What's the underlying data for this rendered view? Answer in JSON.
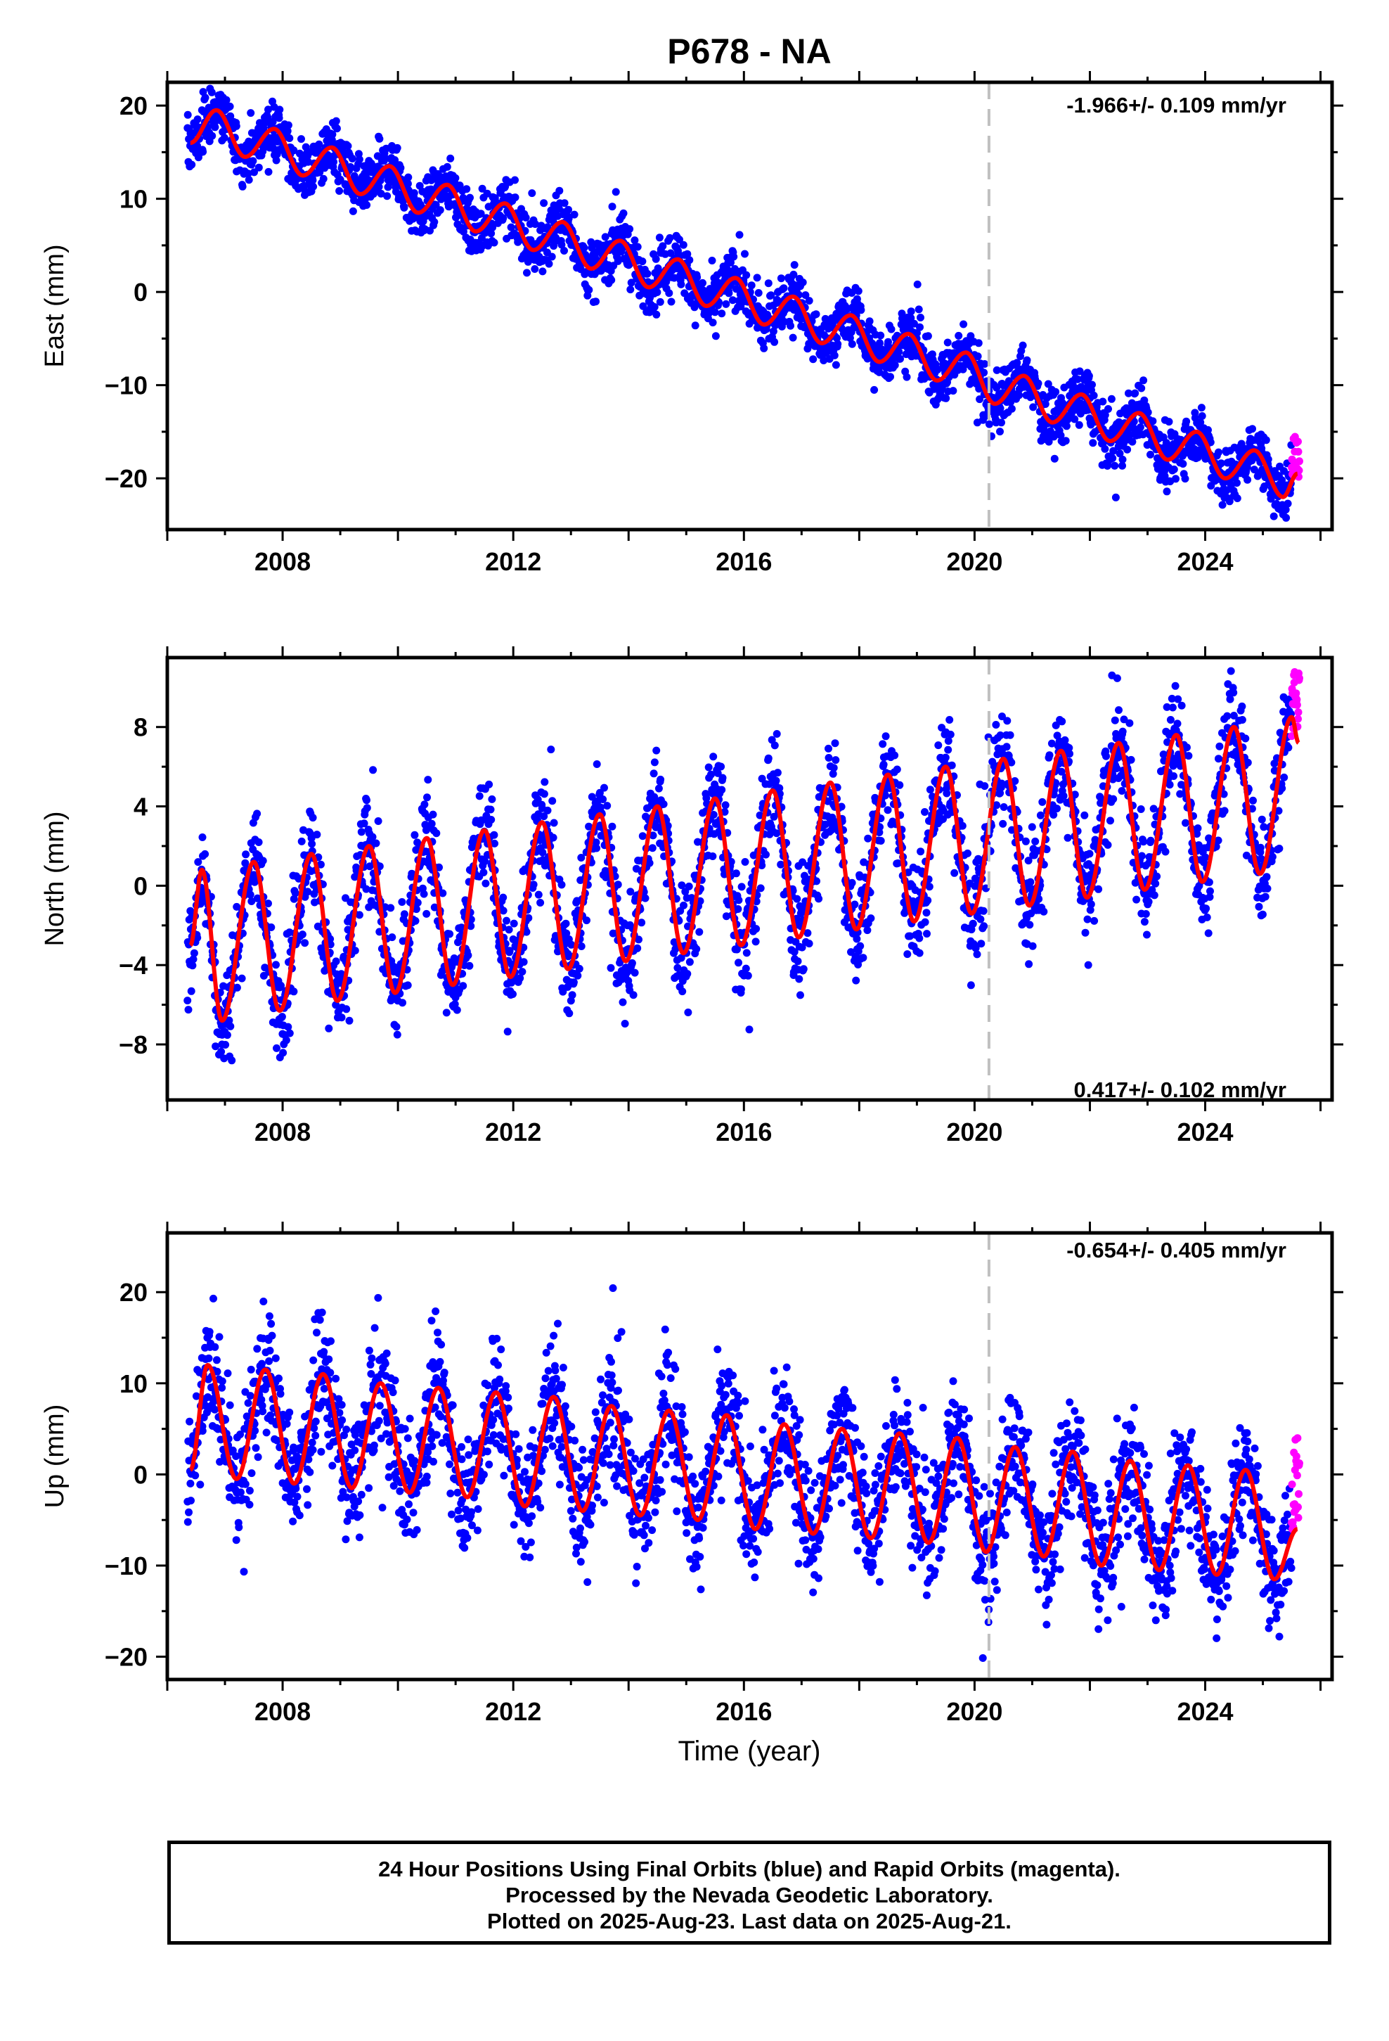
{
  "title": "P678 - NA",
  "xlabel": "Time (year)",
  "colors": {
    "final_orbits": "#0000ff",
    "rapid_orbits": "#ff00ff",
    "model_fit": "#ff0000",
    "marker_line": "#c0c0c0"
  },
  "footer": {
    "line1": "24 Hour Positions Using Final Orbits (blue) and Rapid Orbits (magenta).",
    "line2": "Processed by the Nevada Geodetic Laboratory.",
    "line3": "Plotted on 2025-Aug-23. Last data on 2025-Aug-21."
  },
  "chart_data": [
    {
      "type": "scatter",
      "component": "East",
      "ylabel": "East (mm)",
      "rate_label": "-1.966+/- 0.109 mm/yr",
      "xlim": [
        2006.0,
        2026.2
      ],
      "ylim": [
        -25.5,
        22.5
      ],
      "xticks": [
        2008,
        2012,
        2016,
        2020,
        2024
      ],
      "yticks": [
        -20,
        -10,
        0,
        10,
        20
      ],
      "marker_line_x": 2020.25,
      "data_start": 2006.35,
      "data_end": 2025.64,
      "rapid_start": 2025.5,
      "fit_points": [
        [
          2006.4,
          16.0
        ],
        [
          2006.85,
          19.5
        ],
        [
          2007.35,
          14.5
        ],
        [
          2007.85,
          17.5
        ],
        [
          2008.35,
          12.5
        ],
        [
          2008.85,
          15.5
        ],
        [
          2009.35,
          10.5
        ],
        [
          2009.85,
          13.5
        ],
        [
          2010.35,
          8.5
        ],
        [
          2010.85,
          11.5
        ],
        [
          2011.35,
          6.5
        ],
        [
          2011.85,
          9.5
        ],
        [
          2012.35,
          4.5
        ],
        [
          2012.85,
          7.5
        ],
        [
          2013.35,
          2.5
        ],
        [
          2013.85,
          5.5
        ],
        [
          2014.35,
          0.5
        ],
        [
          2014.85,
          3.5
        ],
        [
          2015.35,
          -1.5
        ],
        [
          2015.85,
          1.5
        ],
        [
          2016.35,
          -3.5
        ],
        [
          2016.85,
          -0.5
        ],
        [
          2017.35,
          -5.5
        ],
        [
          2017.85,
          -2.5
        ],
        [
          2018.35,
          -7.5
        ],
        [
          2018.85,
          -4.5
        ],
        [
          2019.35,
          -9.5
        ],
        [
          2019.85,
          -6.5
        ],
        [
          2020.35,
          -12.0
        ],
        [
          2020.85,
          -9.0
        ],
        [
          2021.35,
          -14.0
        ],
        [
          2021.85,
          -11.0
        ],
        [
          2022.35,
          -16.0
        ],
        [
          2022.85,
          -13.0
        ],
        [
          2023.35,
          -18.0
        ],
        [
          2023.85,
          -15.0
        ],
        [
          2024.35,
          -20.0
        ],
        [
          2024.85,
          -17.0
        ],
        [
          2025.35,
          -22.0
        ],
        [
          2025.6,
          -19.5
        ]
      ],
      "scatter_spread_mm": 1.5,
      "rapid_range": [
        -20.0,
        -15.5
      ]
    },
    {
      "type": "scatter",
      "component": "North",
      "ylabel": "North (mm)",
      "rate_label": "0.417+/- 0.102 mm/yr",
      "xlim": [
        2006.0,
        2026.2
      ],
      "ylim": [
        -10.8,
        11.5
      ],
      "xticks": [
        2008,
        2012,
        2016,
        2020,
        2024
      ],
      "yticks": [
        -8,
        -4,
        0,
        4,
        8
      ],
      "marker_line_x": 2020.25,
      "data_start": 2006.35,
      "data_end": 2025.64,
      "rapid_start": 2025.5,
      "fit_points": [
        [
          2006.4,
          -3.0
        ],
        [
          2006.6,
          0.8
        ],
        [
          2006.95,
          -6.8
        ],
        [
          2007.5,
          1.2
        ],
        [
          2007.95,
          -6.3
        ],
        [
          2008.5,
          1.6
        ],
        [
          2008.95,
          -5.8
        ],
        [
          2009.5,
          2.0
        ],
        [
          2009.95,
          -5.4
        ],
        [
          2010.5,
          2.4
        ],
        [
          2010.95,
          -5.0
        ],
        [
          2011.5,
          2.8
        ],
        [
          2011.95,
          -4.6
        ],
        [
          2012.5,
          3.2
        ],
        [
          2012.95,
          -4.2
        ],
        [
          2013.5,
          3.6
        ],
        [
          2013.95,
          -3.8
        ],
        [
          2014.5,
          4.0
        ],
        [
          2014.95,
          -3.4
        ],
        [
          2015.5,
          4.4
        ],
        [
          2015.95,
          -3.0
        ],
        [
          2016.5,
          4.8
        ],
        [
          2016.95,
          -2.6
        ],
        [
          2017.5,
          5.2
        ],
        [
          2017.95,
          -2.2
        ],
        [
          2018.5,
          5.6
        ],
        [
          2018.95,
          -1.8
        ],
        [
          2019.5,
          6.0
        ],
        [
          2019.95,
          -1.4
        ],
        [
          2020.5,
          6.4
        ],
        [
          2020.95,
          -1.0
        ],
        [
          2021.5,
          6.8
        ],
        [
          2021.95,
          -0.6
        ],
        [
          2022.5,
          7.2
        ],
        [
          2022.95,
          -0.2
        ],
        [
          2023.5,
          7.6
        ],
        [
          2023.95,
          0.2
        ],
        [
          2024.5,
          8.0
        ],
        [
          2024.95,
          0.6
        ],
        [
          2025.5,
          8.5
        ],
        [
          2025.62,
          7.2
        ]
      ],
      "scatter_spread_mm": 1.3,
      "rapid_range": [
        7.5,
        10.8
      ]
    },
    {
      "type": "scatter",
      "component": "Up",
      "ylabel": "Up (mm)",
      "rate_label": "-0.654+/- 0.405 mm/yr",
      "xlim": [
        2006.0,
        2026.2
      ],
      "ylim": [
        -22.5,
        26.5
      ],
      "xticks": [
        2008,
        2012,
        2016,
        2020,
        2024
      ],
      "yticks": [
        -20,
        -10,
        0,
        10,
        20
      ],
      "marker_line_x": 2020.25,
      "data_start": 2006.35,
      "data_end": 2025.64,
      "rapid_start": 2025.5,
      "fit_points": [
        [
          2006.4,
          0.5
        ],
        [
          2006.7,
          12.0
        ],
        [
          2007.2,
          -0.5
        ],
        [
          2007.7,
          11.5
        ],
        [
          2008.2,
          -1.0
        ],
        [
          2008.7,
          11.0
        ],
        [
          2009.2,
          -1.5
        ],
        [
          2009.7,
          10.0
        ],
        [
          2010.2,
          -2.0
        ],
        [
          2010.7,
          9.5
        ],
        [
          2011.2,
          -2.5
        ],
        [
          2011.7,
          9.0
        ],
        [
          2012.2,
          -3.5
        ],
        [
          2012.7,
          8.5
        ],
        [
          2013.2,
          -4.0
        ],
        [
          2013.7,
          7.5
        ],
        [
          2014.2,
          -4.5
        ],
        [
          2014.7,
          7.0
        ],
        [
          2015.2,
          -5.0
        ],
        [
          2015.7,
          6.5
        ],
        [
          2016.2,
          -6.0
        ],
        [
          2016.7,
          5.5
        ],
        [
          2017.2,
          -6.5
        ],
        [
          2017.7,
          5.0
        ],
        [
          2018.2,
          -7.0
        ],
        [
          2018.7,
          4.5
        ],
        [
          2019.2,
          -7.5
        ],
        [
          2019.7,
          4.0
        ],
        [
          2020.2,
          -8.5
        ],
        [
          2020.7,
          3.0
        ],
        [
          2021.2,
          -9.0
        ],
        [
          2021.7,
          2.5
        ],
        [
          2022.2,
          -10.0
        ],
        [
          2022.7,
          1.5
        ],
        [
          2023.2,
          -10.5
        ],
        [
          2023.7,
          1.0
        ],
        [
          2024.2,
          -11.0
        ],
        [
          2024.7,
          0.5
        ],
        [
          2025.2,
          -11.5
        ],
        [
          2025.6,
          -6.0
        ]
      ],
      "scatter_spread_mm": 3.2,
      "rapid_range": [
        -7.5,
        4.0
      ]
    }
  ]
}
